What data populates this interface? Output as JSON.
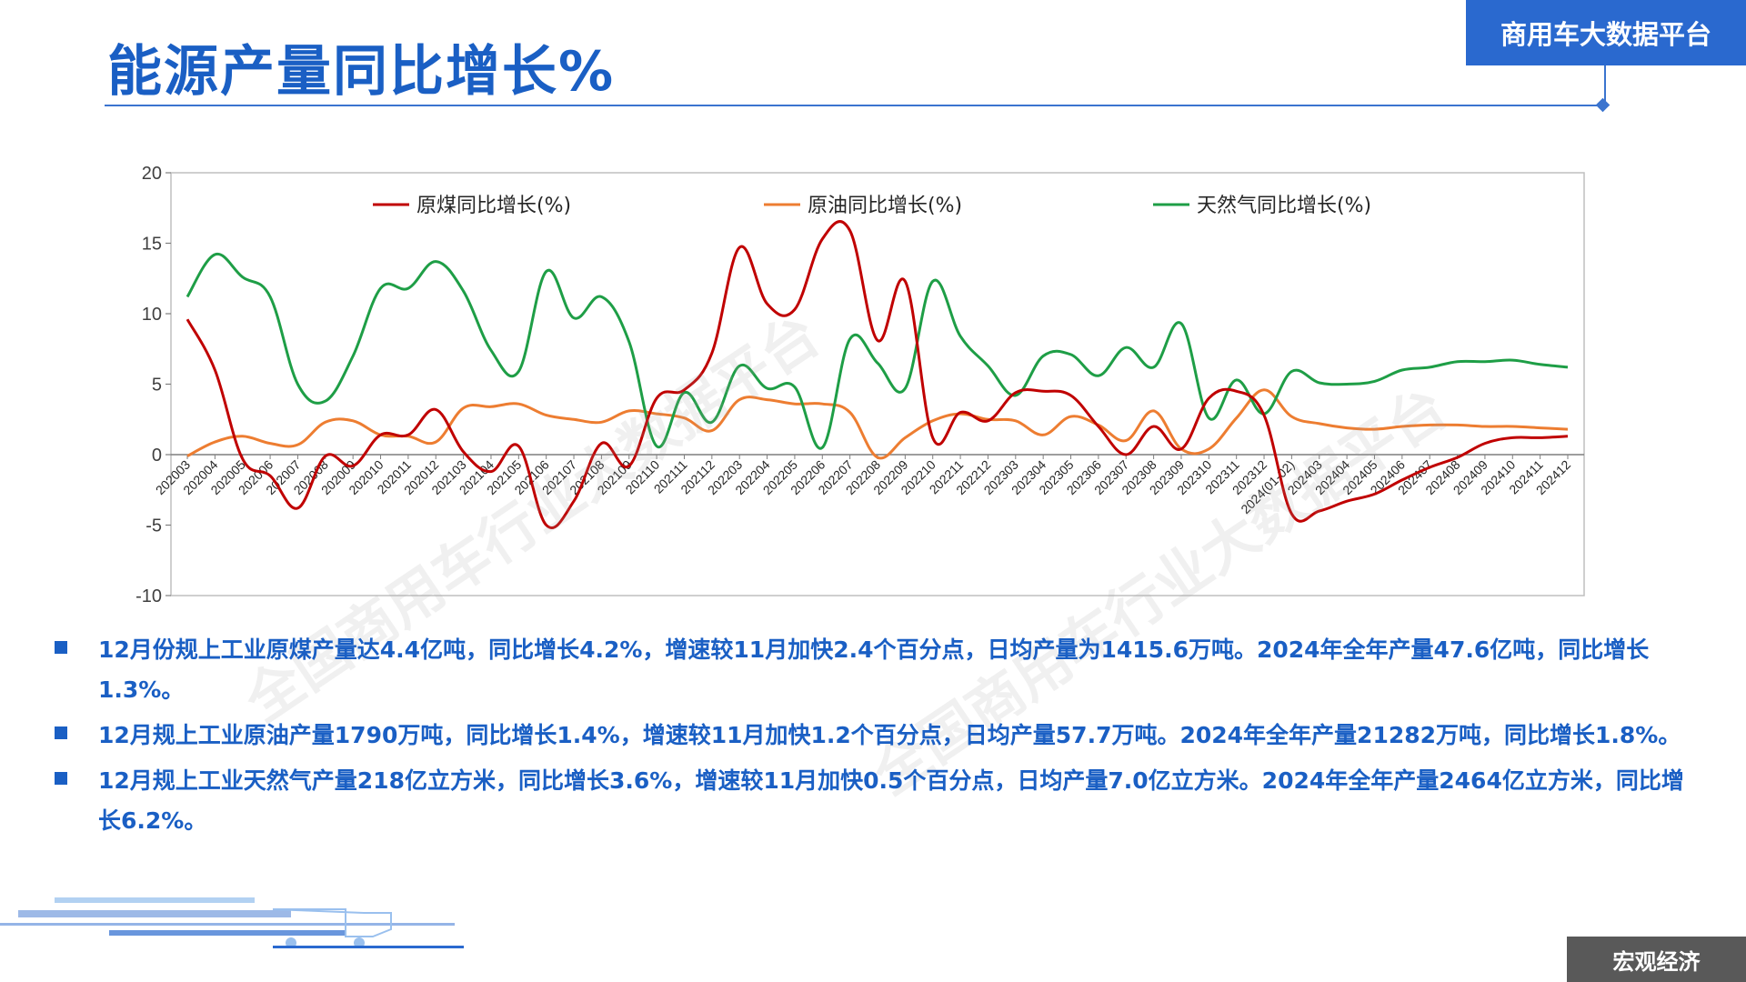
{
  "page": {
    "title": "能源产量同比增长%",
    "brand": "商用车大数据平台",
    "footer": "宏观经济",
    "watermark": "全国商用车行业大数据平台"
  },
  "colors": {
    "accent": "#1a5fc4",
    "coal": "#c00000",
    "oil": "#ed7d31",
    "gas": "#1e9e46",
    "footer_bg": "#595959"
  },
  "bullets": [
    "12月份规上工业原煤产量达4.4亿吨，同比增长4.2%，增速较11月加快2.4个百分点，日均产量为1415.6万吨。2024年全年产量47.6亿吨，同比增长1.3%。",
    "12月规上工业原油产量1790万吨，同比增长1.4%，增速较11月加快1.2个百分点，日均产量57.7万吨。2024年全年产量21282万吨，同比增长1.8%。",
    "12月规上工业天然气产量218亿立方米，同比增长3.6%，增速较11月加快0.5个百分点，日均产量7.0亿立方米。2024年全年产量2464亿立方米，同比增长6.2%。"
  ],
  "chart_data": {
    "type": "line",
    "title": "",
    "xlabel": "",
    "ylabel": "",
    "ylim": [
      -10,
      20
    ],
    "yticks": [
      -10,
      -5,
      0,
      5,
      10,
      15,
      20
    ],
    "grid": false,
    "legend_position": "top",
    "categories": [
      "202003",
      "202004",
      "202005",
      "202006",
      "202007",
      "202008",
      "202009",
      "202010",
      "202011",
      "202012",
      "202103",
      "202104",
      "202105",
      "202106",
      "202107",
      "202108",
      "202109",
      "202110",
      "202111",
      "202112",
      "202203",
      "202204",
      "202205",
      "202206",
      "202207",
      "202208",
      "202209",
      "202210",
      "202211",
      "202212",
      "202303",
      "202304",
      "202305",
      "202306",
      "202307",
      "202308",
      "202309",
      "202310",
      "202311",
      "202312",
      "2024(01-02)",
      "202403",
      "202404",
      "202405",
      "202406",
      "202407",
      "202408",
      "202409",
      "202410",
      "202411",
      "202412"
    ],
    "series": [
      {
        "name": "原煤同比增长(%)",
        "color": "#c00000",
        "values": [
          9.6,
          6.0,
          -0.3,
          -1.5,
          -3.8,
          -0.1,
          -0.8,
          1.4,
          1.4,
          3.2,
          0.2,
          -1.2,
          0.6,
          -5.0,
          -3.3,
          0.8,
          -0.8,
          4.0,
          4.6,
          7.2,
          14.7,
          10.7,
          10.3,
          15.3,
          15.9,
          8.1,
          12.3,
          1.2,
          3.0,
          2.4,
          4.4,
          4.5,
          4.2,
          2.0,
          0.0,
          2.0,
          0.4,
          4.0,
          4.5,
          2.8,
          -4.2,
          -4.0,
          -3.3,
          -2.8,
          -1.8,
          -0.9,
          -0.2,
          0.8,
          1.2,
          1.2,
          1.3
        ]
      },
      {
        "name": "原油同比增长(%)",
        "color": "#ed7d31",
        "values": [
          -0.1,
          0.9,
          1.3,
          0.8,
          0.7,
          2.3,
          2.4,
          1.4,
          1.3,
          0.9,
          3.3,
          3.4,
          3.6,
          2.8,
          2.5,
          2.3,
          3.1,
          2.9,
          2.6,
          1.7,
          3.9,
          3.9,
          3.6,
          3.6,
          3.0,
          -0.2,
          1.2,
          2.4,
          2.9,
          2.5,
          2.4,
          1.4,
          2.7,
          2.1,
          1.0,
          3.1,
          0.4,
          0.4,
          2.6,
          4.6,
          2.7,
          2.2,
          1.9,
          1.8,
          2.0,
          2.1,
          2.1,
          2.0,
          2.0,
          1.9,
          1.8
        ]
      },
      {
        "name": "天然气同比增长(%)",
        "color": "#1e9e46",
        "values": [
          11.2,
          14.2,
          12.6,
          11.2,
          5.0,
          3.8,
          7.0,
          11.8,
          11.8,
          13.7,
          11.6,
          7.4,
          5.9,
          13.0,
          9.7,
          11.2,
          8.0,
          0.6,
          4.4,
          2.3,
          6.3,
          4.7,
          4.8,
          0.5,
          8.2,
          6.5,
          4.7,
          12.3,
          8.4,
          6.3,
          4.2,
          7.0,
          7.1,
          5.6,
          7.6,
          6.2,
          9.3,
          2.6,
          5.3,
          2.9,
          5.9,
          5.1,
          5.0,
          5.2,
          6.0,
          6.2,
          6.6,
          6.6,
          6.7,
          6.4,
          6.2
        ]
      }
    ]
  }
}
